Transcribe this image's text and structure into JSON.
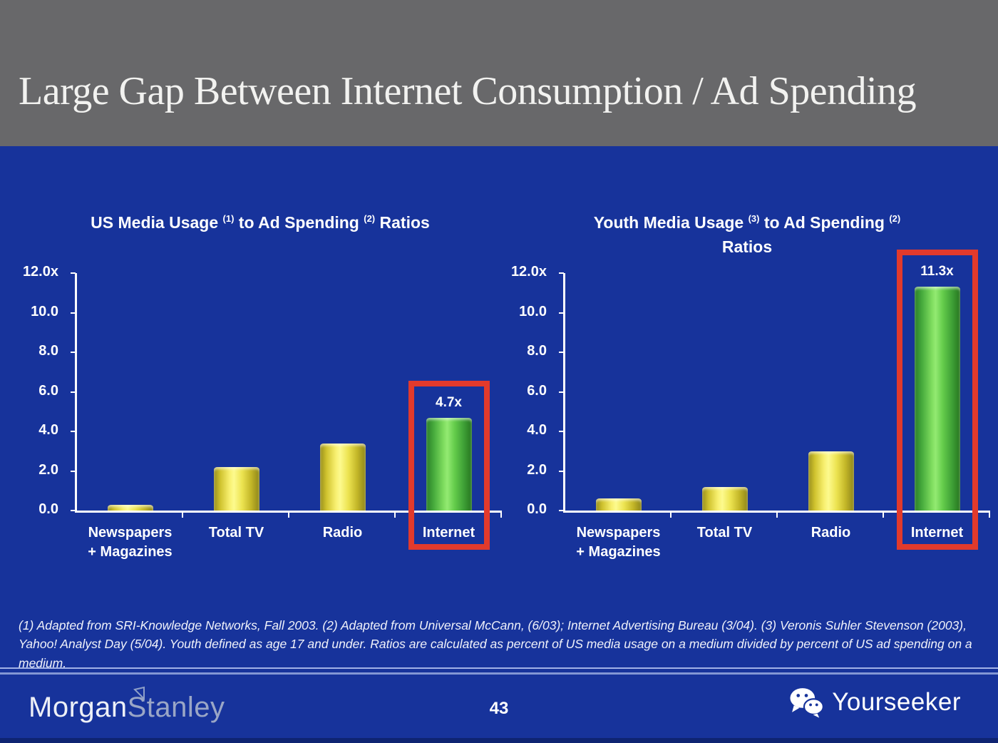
{
  "header": {
    "title": "Large Gap Between Internet Consumption / Ad Spending"
  },
  "footnote": "(1) Adapted from SRI-Knowledge Networks, Fall 2003.  (2) Adapted from Universal McCann, (6/03); Internet Advertising Bureau (3/04). (3) Veronis Suhler Stevenson (2003), Yahoo! Analyst Day (5/04).  Youth defined as age 17 and under.  Ratios are calculated as percent of US media usage on a medium divided by percent of US ad spending on a medium.",
  "footer": {
    "morgan": "Morgan",
    "stanley": "Stanley",
    "flag_icon": "pennant-icon",
    "page": "43",
    "wechat_icon": "wechat-icon",
    "yourseeker": "Yourseeker"
  },
  "colors": {
    "background_blue": "#17339b",
    "header_gray": "#68686a",
    "bar_yellow": "#f2e95c",
    "bar_green": "#5fcc48",
    "highlight_red": "#e23a2c",
    "text_white": "#ffffff"
  },
  "chart_data": [
    {
      "type": "bar",
      "title": "US Media Usage (1) to Ad Spending (2) Ratios",
      "title_lines": [
        [
          {
            "t": "US Media Usage "
          },
          {
            "t": "(1)",
            "sup": true
          },
          {
            "t": " to Ad Spending "
          },
          {
            "t": "(2)",
            "sup": true
          },
          {
            "t": " Ratios"
          }
        ]
      ],
      "categories": [
        "Newspapers + Magazines",
        "Total TV",
        "Radio",
        "Internet"
      ],
      "category_lines": [
        [
          "Newspapers",
          "+ Magazines"
        ],
        [
          "Total TV"
        ],
        [
          "Radio"
        ],
        [
          "Internet"
        ]
      ],
      "values": [
        0.3,
        2.2,
        3.4,
        4.7
      ],
      "bar_colors": [
        "yellow",
        "yellow",
        "yellow",
        "green"
      ],
      "y_ticks": [
        "12.0x",
        "10.0",
        "8.0",
        "6.0",
        "4.0",
        "2.0",
        "0.0"
      ],
      "ylim": [
        0,
        12
      ],
      "xlabel": "",
      "ylabel": "",
      "grid": false,
      "legend": "none",
      "highlight": {
        "index": 3,
        "label": "4.7x"
      }
    },
    {
      "type": "bar",
      "title": "Youth Media Usage (3) to Ad Spending (2) Ratios",
      "title_lines": [
        [
          {
            "t": "Youth Media Usage "
          },
          {
            "t": "(3)",
            "sup": true
          },
          {
            "t": " to Ad Spending "
          },
          {
            "t": "(2)",
            "sup": true
          }
        ],
        [
          {
            "t": "Ratios"
          }
        ]
      ],
      "categories": [
        "Newspapers + Magazines",
        "Total TV",
        "Radio",
        "Internet"
      ],
      "category_lines": [
        [
          "Newspapers",
          "+ Magazines"
        ],
        [
          "Total TV"
        ],
        [
          "Radio"
        ],
        [
          "Internet"
        ]
      ],
      "values": [
        0.6,
        1.2,
        3.0,
        11.3
      ],
      "bar_colors": [
        "yellow",
        "yellow",
        "yellow",
        "green"
      ],
      "y_ticks": [
        "12.0x",
        "10.0",
        "8.0",
        "6.0",
        "4.0",
        "2.0",
        "0.0"
      ],
      "ylim": [
        0,
        12
      ],
      "xlabel": "",
      "ylabel": "",
      "grid": false,
      "legend": "none",
      "highlight": {
        "index": 3,
        "label": "11.3x"
      }
    }
  ]
}
